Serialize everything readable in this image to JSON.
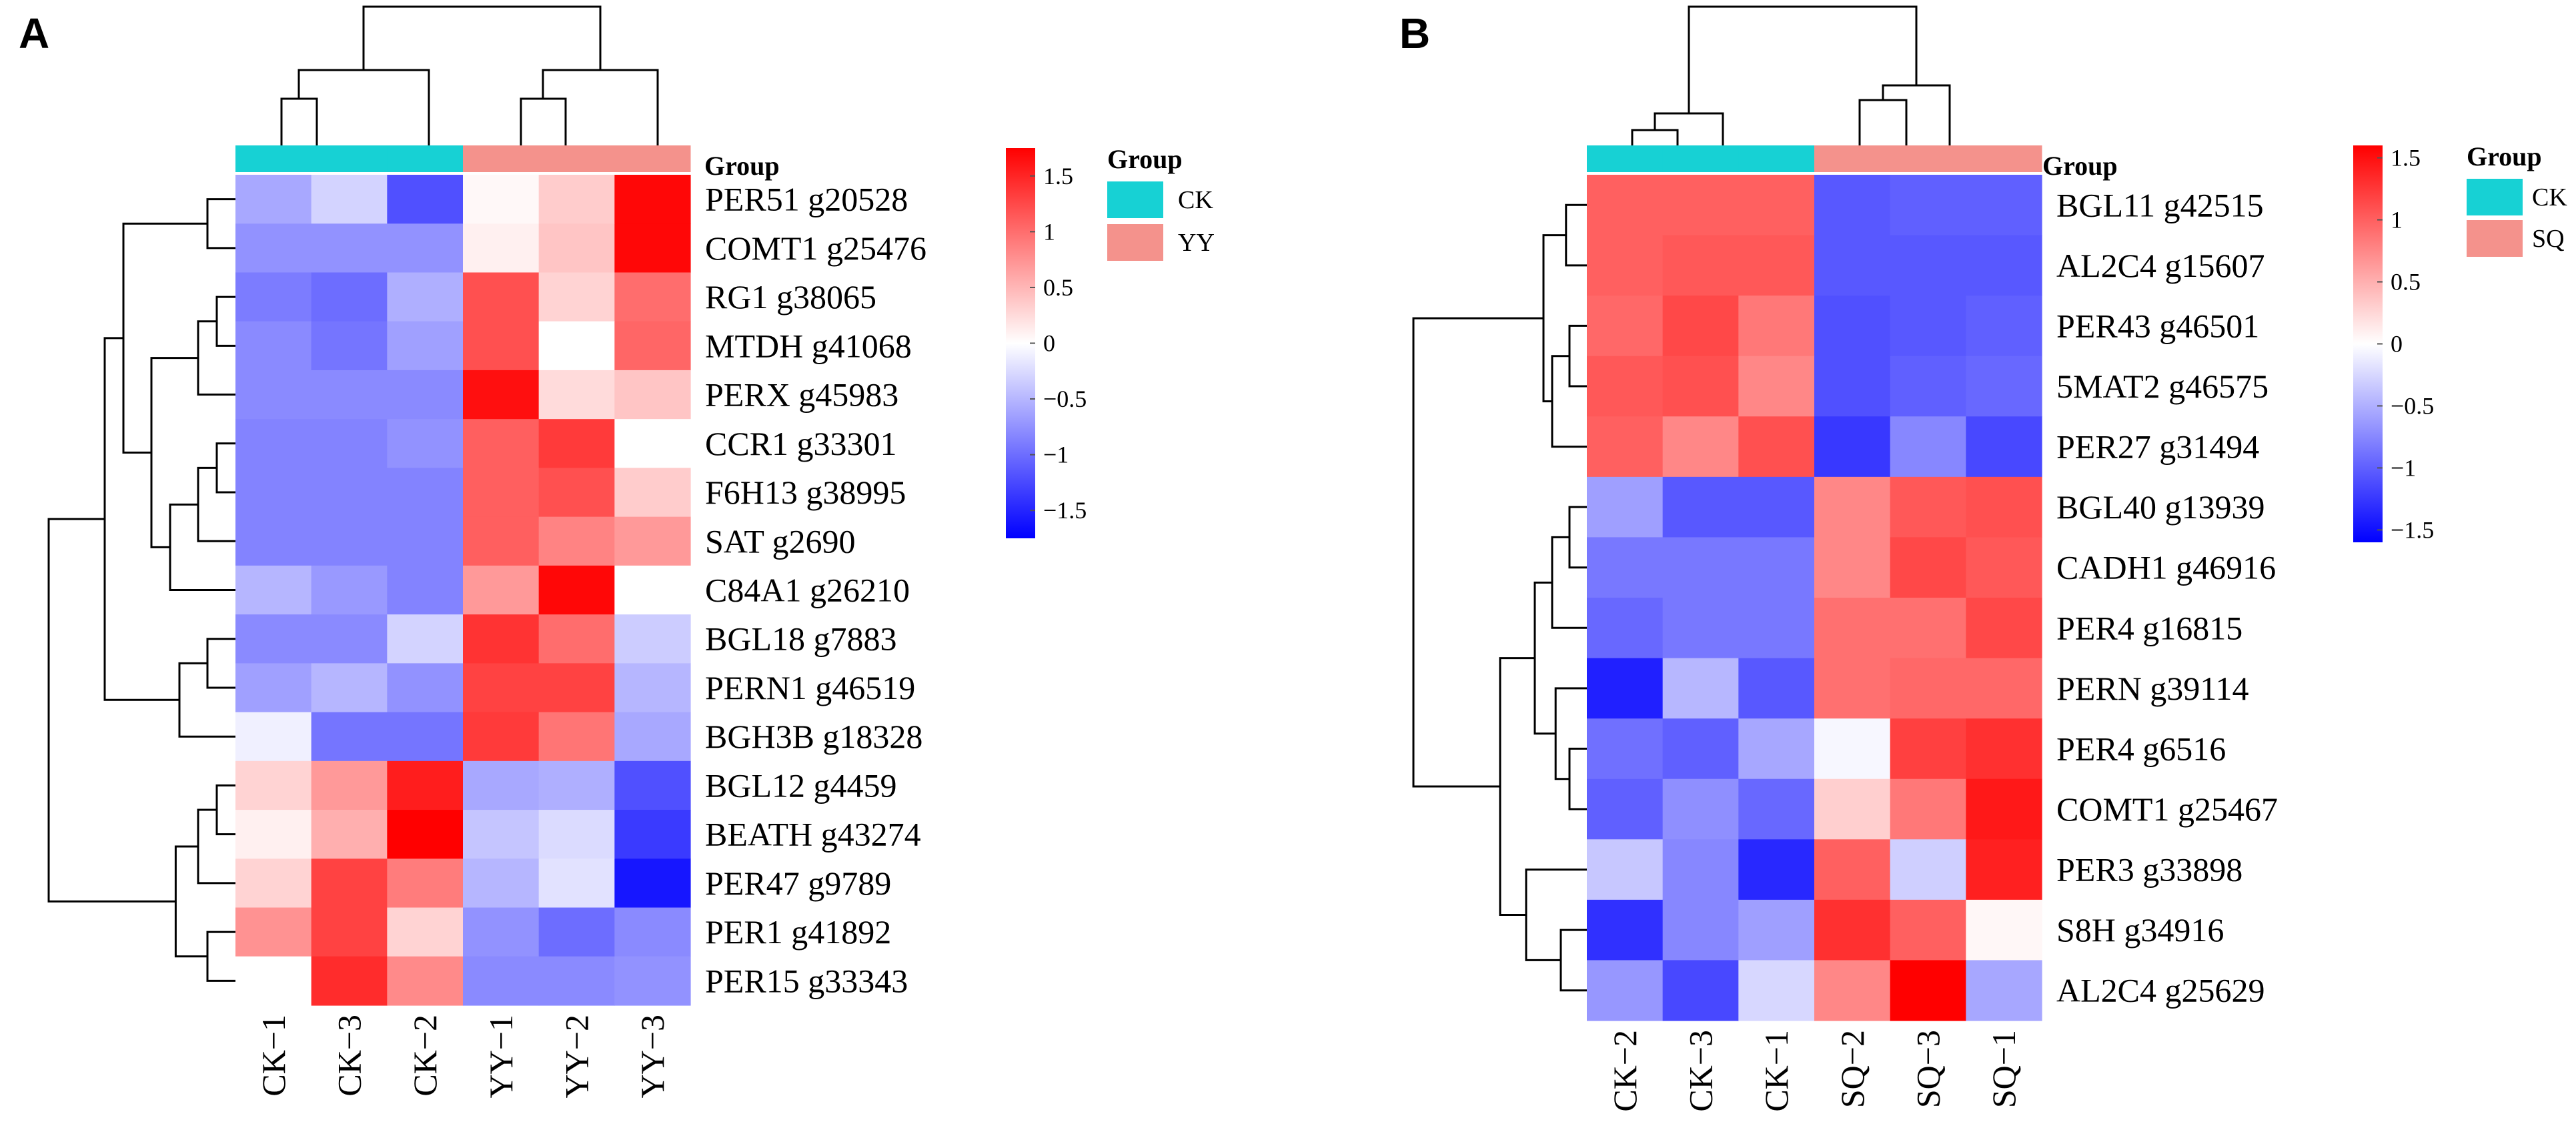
{
  "colors": {
    "CK": "#17d1d4",
    "YY": "#f4928c",
    "SQ": "#f4928c",
    "low": "#0000ff",
    "mid": "#ffffff",
    "high": "#ff0000"
  },
  "chart_data": [
    {
      "type": "heatmap",
      "panel": "A",
      "group_title": "Group",
      "legend_title": "Group",
      "legend_items": [
        "CK",
        "YY"
      ],
      "columns": [
        "CK−1",
        "CK−3",
        "CK−2",
        "YY−1",
        "YY−2",
        "YY−3"
      ],
      "column_groups": [
        "CK",
        "CK",
        "CK",
        "YY",
        "YY",
        "YY"
      ],
      "rows": [
        "PER51 g20528",
        "COMT1 g25476",
        "RG1 g38065",
        "MTDH g41068",
        "PERX g45983",
        "CCR1 g33301",
        "F6H13 g38995",
        "SAT g2690",
        "C84A1 g26210",
        "BGL18 g7883",
        "PERN1 g46519",
        "BGH3B g18328",
        "BGL12 g4459",
        "BEATH g43274",
        "PER47 g9789",
        "PER1 g41892",
        "PER15 g33343"
      ],
      "values": [
        [
          -0.6,
          -0.3,
          -1.2,
          0.05,
          0.35,
          1.7
        ],
        [
          -0.75,
          -0.75,
          -0.75,
          0.1,
          0.4,
          1.7
        ],
        [
          -0.9,
          -1.0,
          -0.55,
          1.2,
          0.3,
          1.0
        ],
        [
          -0.8,
          -0.95,
          -0.65,
          1.2,
          0.0,
          1.05
        ],
        [
          -0.8,
          -0.8,
          -0.8,
          1.65,
          0.25,
          0.4
        ],
        [
          -0.85,
          -0.85,
          -0.75,
          1.1,
          1.35,
          0.0
        ],
        [
          -0.85,
          -0.85,
          -0.85,
          1.1,
          1.2,
          0.35
        ],
        [
          -0.85,
          -0.85,
          -0.85,
          1.1,
          0.85,
          0.7
        ],
        [
          -0.5,
          -0.7,
          -0.85,
          0.7,
          1.7,
          0.0
        ],
        [
          -0.8,
          -0.8,
          -0.3,
          1.4,
          1.0,
          -0.35
        ],
        [
          -0.65,
          -0.5,
          -0.75,
          1.3,
          1.3,
          -0.5
        ],
        [
          -0.1,
          -0.95,
          -0.95,
          1.35,
          0.95,
          -0.6
        ],
        [
          0.3,
          0.7,
          1.55,
          -0.6,
          -0.55,
          -1.2
        ],
        [
          0.1,
          0.55,
          1.75,
          -0.4,
          -0.25,
          -1.35
        ],
        [
          0.3,
          1.3,
          0.9,
          -0.5,
          -0.2,
          -1.6
        ],
        [
          0.75,
          1.3,
          0.3,
          -0.75,
          -1.0,
          -0.8
        ],
        [
          0.0,
          1.45,
          0.8,
          -0.8,
          -0.8,
          -0.75
        ]
      ],
      "scale_ticks": [
        "1.5",
        "1",
        "0.5",
        "0",
        "−0.5",
        "−1",
        "−1.5"
      ],
      "scale_range": [
        -1.75,
        1.75
      ]
    },
    {
      "type": "heatmap",
      "panel": "B",
      "group_title": "Group",
      "legend_title": "Group",
      "legend_items": [
        "CK",
        "SQ"
      ],
      "columns": [
        "CK−2",
        "CK−3",
        "CK−1",
        "SQ−2",
        "SQ−3",
        "SQ−1"
      ],
      "column_groups": [
        "CK",
        "CK",
        "CK",
        "SQ",
        "SQ",
        "SQ"
      ],
      "rows": [
        "BGL11 g42515",
        "AL2C4 g15607",
        "PER43 g46501",
        "5MAT2 g46575",
        "PER27 g31494",
        "BGL40 g13939",
        "CADH1 g46916",
        "PER4 g16815",
        "PERN g39114",
        "PER4 g6516",
        "COMT1 g25467",
        "PER3 g33898",
        "S8H g34916",
        "AL2C4 g25629"
      ],
      "values": [
        [
          1.0,
          1.0,
          1.0,
          -1.05,
          -1.0,
          -1.0
        ],
        [
          1.0,
          1.05,
          1.05,
          -1.05,
          -1.05,
          -1.05
        ],
        [
          0.95,
          1.15,
          0.85,
          -1.1,
          -1.05,
          -1.0
        ],
        [
          1.05,
          1.1,
          0.75,
          -1.1,
          -1.0,
          -0.95
        ],
        [
          1.0,
          0.75,
          1.1,
          -1.25,
          -0.75,
          -1.15
        ],
        [
          -0.6,
          -1.05,
          -1.05,
          0.75,
          1.05,
          1.1
        ],
        [
          -0.85,
          -0.85,
          -0.85,
          0.75,
          1.15,
          1.05
        ],
        [
          -0.95,
          -0.85,
          -0.85,
          0.9,
          0.9,
          1.15
        ],
        [
          -1.4,
          -0.45,
          -1.05,
          0.9,
          0.95,
          0.95
        ],
        [
          -0.9,
          -1.0,
          -0.55,
          -0.05,
          1.2,
          1.3
        ],
        [
          -1.0,
          -0.7,
          -0.95,
          0.3,
          0.85,
          1.45
        ],
        [
          -0.35,
          -0.75,
          -1.35,
          1.0,
          -0.3,
          1.4
        ],
        [
          -1.3,
          -0.75,
          -0.6,
          1.3,
          1.0,
          0.05
        ],
        [
          -0.65,
          -1.15,
          -0.25,
          0.75,
          1.6,
          -0.55
        ]
      ],
      "scale_ticks": [
        "1.5",
        "1",
        "0.5",
        "0",
        "−0.5",
        "−1",
        "−1.5"
      ],
      "scale_range": [
        -1.6,
        1.6
      ]
    }
  ]
}
